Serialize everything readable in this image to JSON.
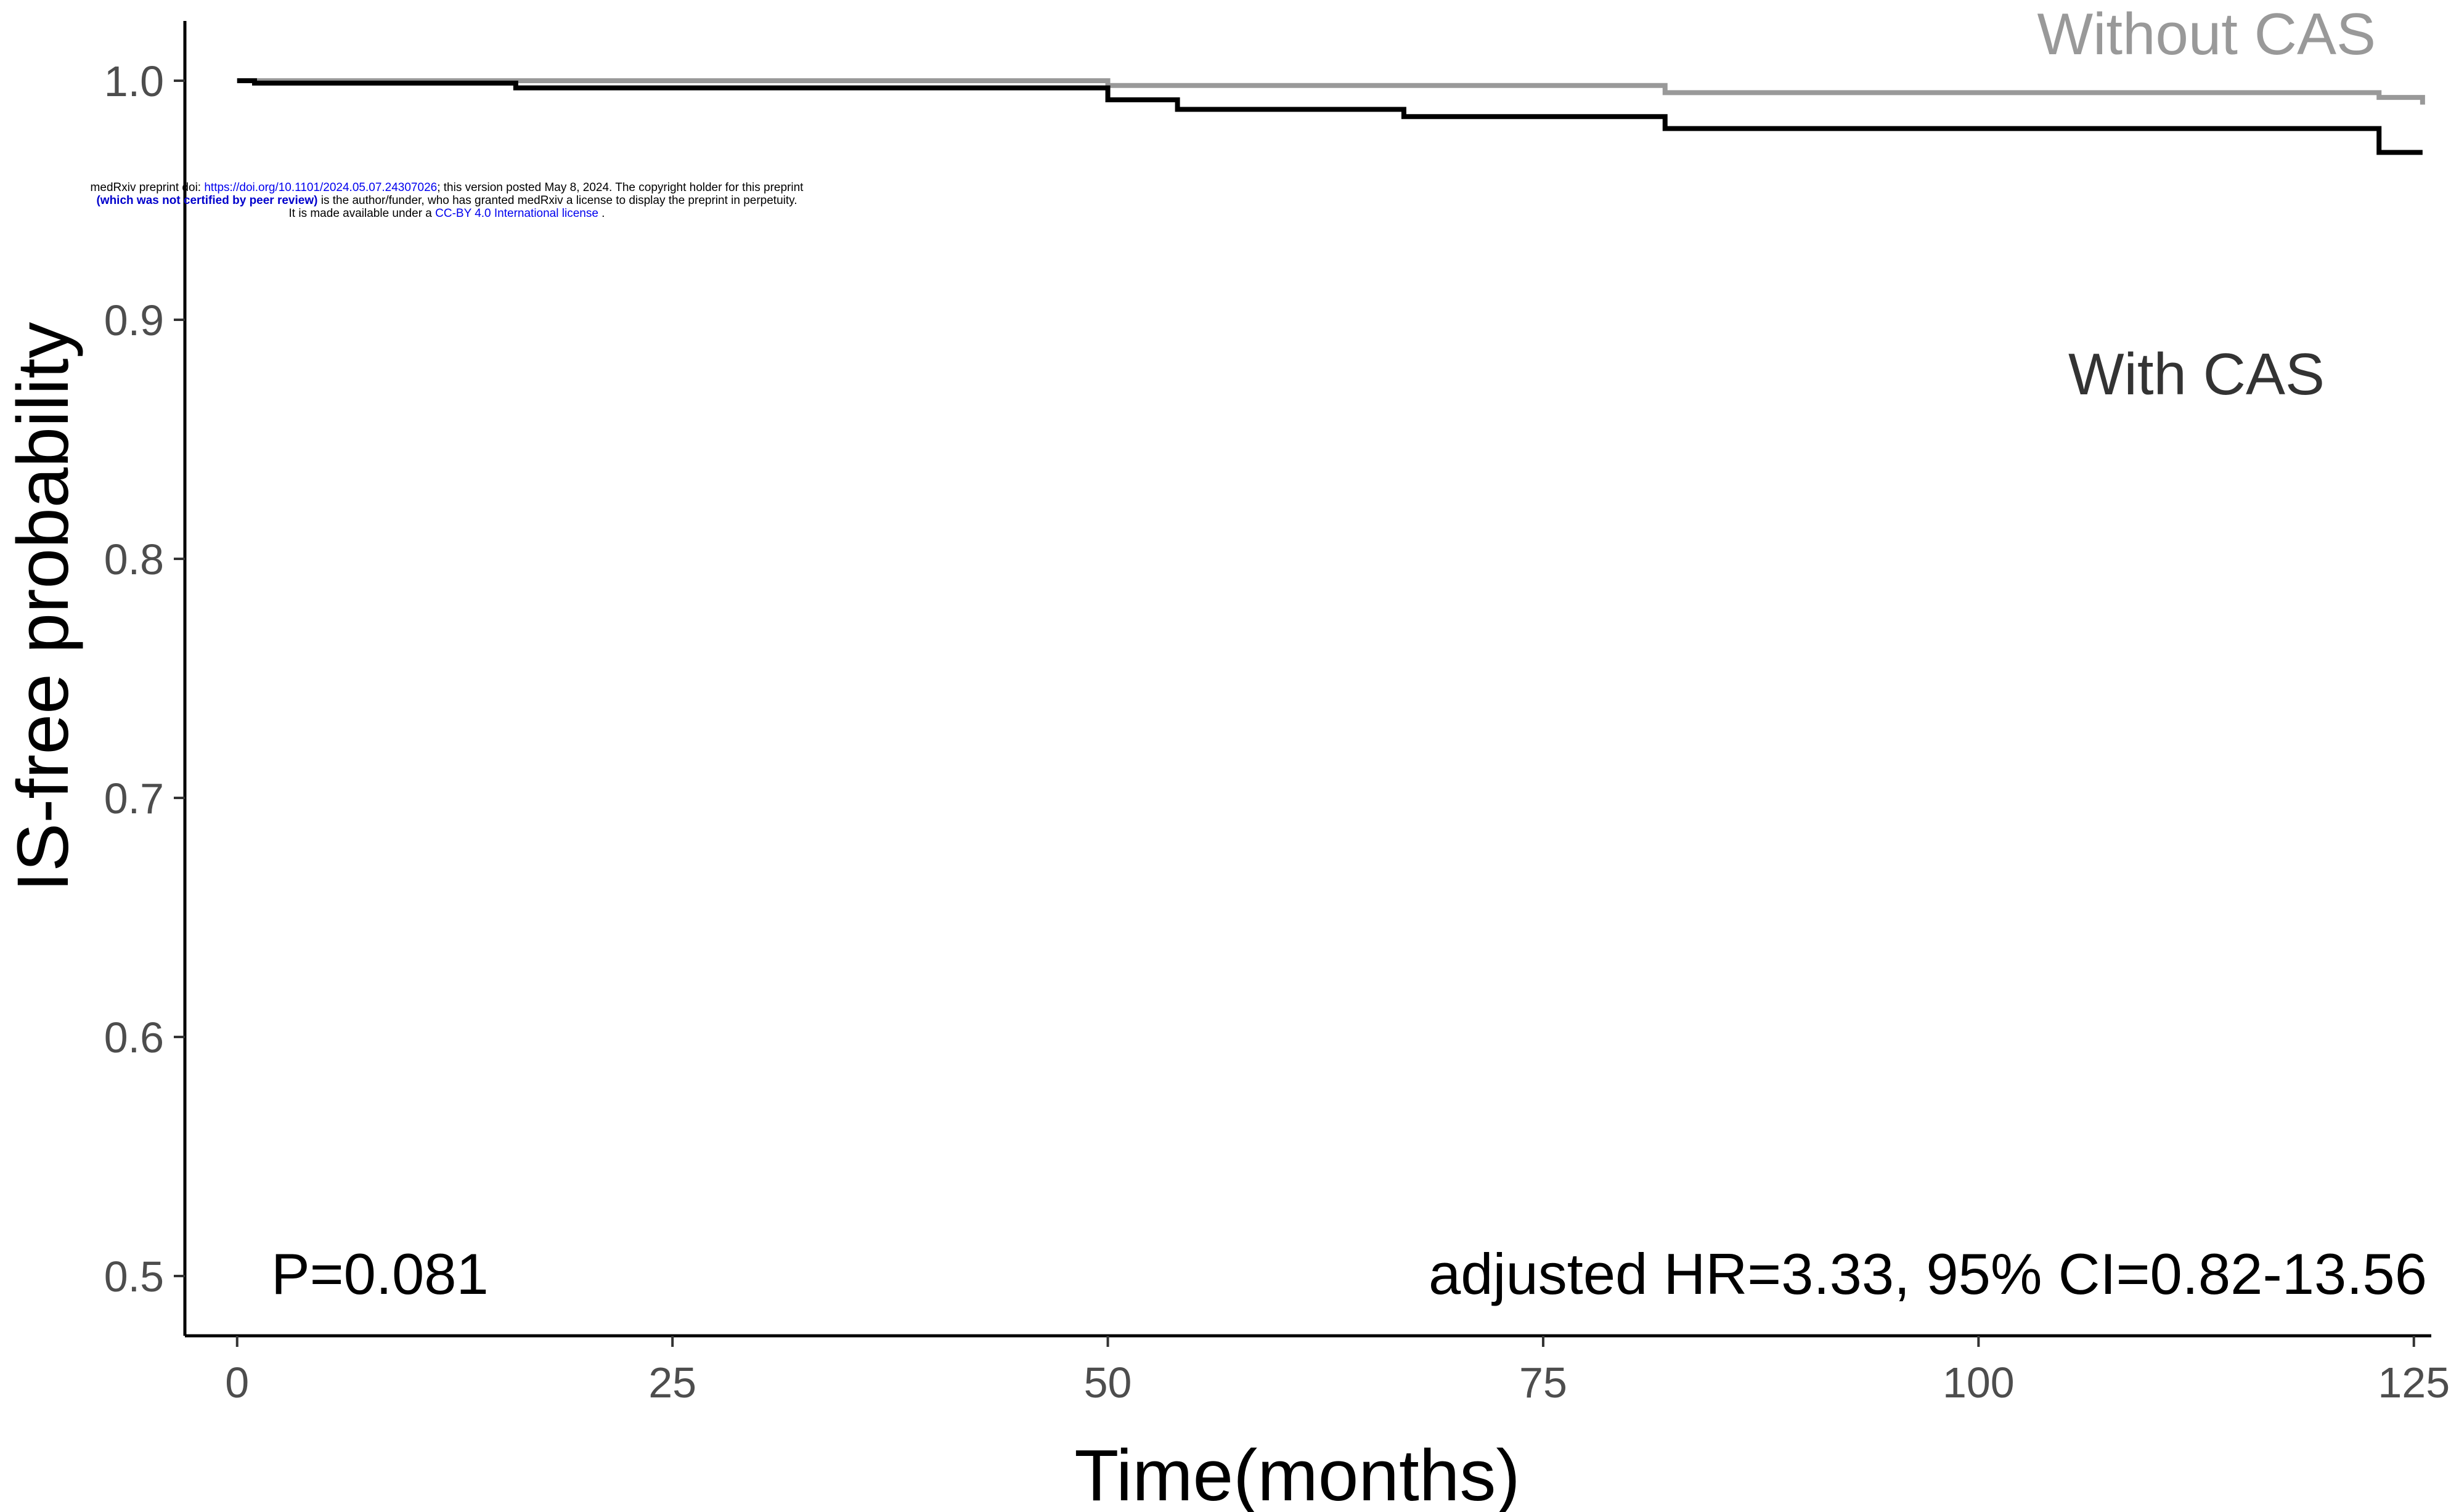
{
  "chart_data": {
    "type": "line",
    "title": "",
    "xlabel": "Time(months)",
    "ylabel": "IS-free probability",
    "xlim": [
      -3,
      126
    ],
    "ylim": [
      0.475,
      1.025
    ],
    "xticks": [
      0,
      25,
      50,
      75,
      100,
      125
    ],
    "xtick_labels": [
      "0",
      "25",
      "50",
      "75",
      "100",
      "125"
    ],
    "yticks": [
      0.5,
      0.6,
      0.7,
      0.8,
      0.9,
      1.0
    ],
    "ytick_labels": [
      "0.5",
      "0.6",
      "0.7",
      "0.8",
      "0.9",
      "1.0"
    ],
    "grid": false,
    "legend": "inline-labels",
    "series": [
      {
        "name": "Without CAS",
        "color": "#999999",
        "step": true,
        "x": [
          0,
          50,
          82,
          123,
          125.5
        ],
        "y": [
          1.0,
          0.998,
          0.995,
          0.993,
          0.99
        ]
      },
      {
        "name": "With CAS",
        "color": "#000000",
        "step": true,
        "x": [
          0,
          1,
          16,
          50,
          54,
          67,
          82,
          123,
          125.5
        ],
        "y": [
          1.0,
          0.999,
          0.997,
          0.992,
          0.988,
          0.985,
          0.98,
          0.97,
          0.97
        ]
      }
    ],
    "annotations": {
      "p_value": "P=0.081",
      "hazard_ratio": "adjusted HR=3.33, 95% CI=0.82-13.56"
    }
  },
  "preprint_notice": {
    "line1_prefix": "medRxiv preprint doi: ",
    "line1_link": "https://doi.org/10.1101/2024.05.07.24307026",
    "line1_suffix": "; this version posted May 8, 2024. The copyright holder for this preprint",
    "line2_bold": "(which was not certified by peer review)",
    "line2_suffix": " is the author/funder, who has granted medRxiv a license to display the preprint in perpetuity.",
    "line3_prefix": "It is made available under a ",
    "line3_link": "CC-BY 4.0 International license",
    "line3_suffix": " ."
  }
}
